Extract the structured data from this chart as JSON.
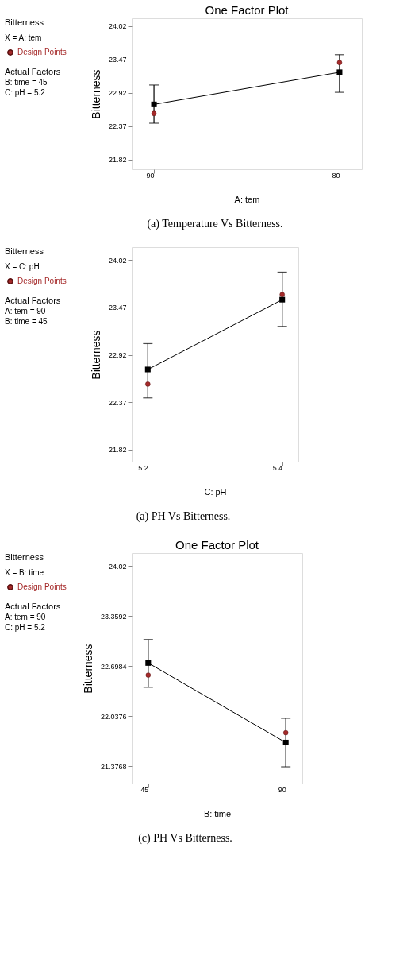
{
  "chart_data": [
    {
      "type": "line",
      "title": "One Factor Plot",
      "xlabel": "A: tem",
      "ylabel": "Bitterness",
      "categories": [
        "90",
        "80"
      ],
      "ylim": [
        21.66,
        24.15
      ],
      "yticks": [
        21.82,
        22.37,
        22.92,
        23.47,
        24.02
      ],
      "grid": false,
      "legend": "left",
      "series": [
        {
          "color": "#000000",
          "marker": "square",
          "values": [
            22.73,
            23.26
          ],
          "errors": [
            [
              22.42,
              23.05
            ],
            [
              22.93,
              23.55
            ]
          ]
        },
        {
          "type": "scatter",
          "name": "Design Points",
          "color": "#a52a2a",
          "marker": "circle",
          "values": [
            22.58,
            23.42
          ]
        }
      ],
      "annotations": [
        "Bitterness",
        "X = A: tem",
        "Actual Factors",
        "B: time = 45",
        "C: pH = 5.2",
        "(a)   Temperature Vs Bitterness."
      ]
    },
    {
      "type": "line",
      "xlabel": "C: pH",
      "ylabel": "Bitterness",
      "categories": [
        "5.2",
        "5.4"
      ],
      "ylim": [
        21.68,
        24.17
      ],
      "yticks": [
        21.82,
        22.37,
        22.92,
        23.47,
        24.02
      ],
      "grid": false,
      "legend": "left",
      "series": [
        {
          "color": "#000000",
          "marker": "square",
          "values": [
            22.75,
            23.56
          ],
          "errors": [
            [
              22.42,
              23.05
            ],
            [
              23.25,
              23.88
            ]
          ]
        },
        {
          "type": "scatter",
          "name": "Design Points",
          "color": "#a52a2a",
          "marker": "circle",
          "values": [
            22.58,
            23.62
          ]
        }
      ],
      "annotations": [
        "Bitterness",
        "X = C: pH",
        "Actual Factors",
        "A: tem = 90",
        "B: time = 45",
        "(a)              PH Vs Bitterness."
      ]
    },
    {
      "type": "line",
      "title": "One Factor Plot",
      "xlabel": "B: time",
      "ylabel": "Bitterness",
      "categories": [
        "45",
        "90"
      ],
      "ylim": [
        21.15,
        24.19
      ],
      "yticks": [
        21.3768,
        22.0376,
        22.6984,
        23.3592,
        24.02
      ],
      "grid": false,
      "legend": "left",
      "series": [
        {
          "color": "#000000",
          "marker": "square",
          "values": [
            22.74,
            21.69
          ],
          "errors": [
            [
              22.42,
              23.05
            ],
            [
              21.37,
              22.01
            ]
          ]
        },
        {
          "type": "scatter",
          "name": "Design Points",
          "color": "#a52a2a",
          "marker": "circle",
          "values": [
            22.58,
            21.82
          ]
        }
      ],
      "annotations": [
        "Bitterness",
        "X = B: time",
        "Actual Factors",
        "A: tem = 90",
        "C: pH = 5.2",
        "(c)  PH Vs Bitterness."
      ]
    }
  ]
}
